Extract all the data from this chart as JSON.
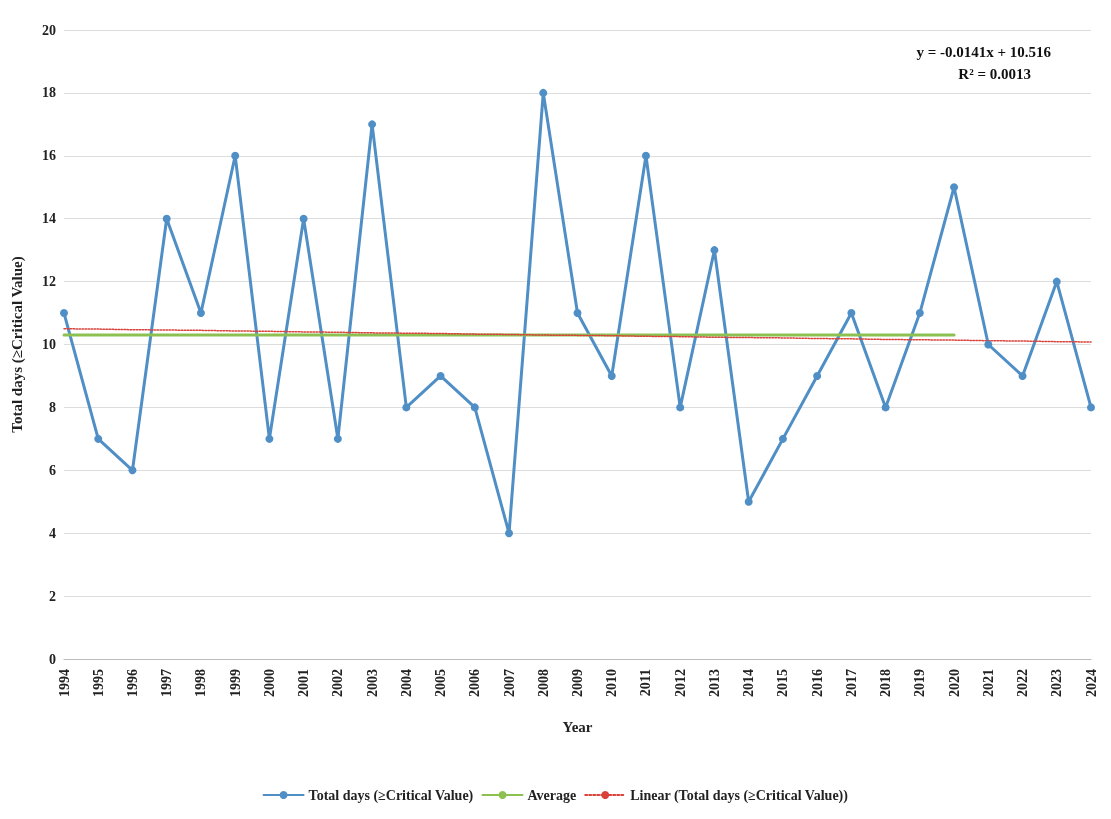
{
  "chart_data": {
    "type": "line",
    "xlabel": "Year",
    "ylabel": "Total days (≥Critical Value)",
    "categories": [
      "1994",
      "1995",
      "1996",
      "1997",
      "1998",
      "1999",
      "2000",
      "2001",
      "2002",
      "2003",
      "2004",
      "2005",
      "2006",
      "2007",
      "2008",
      "2009",
      "2010",
      "2011",
      "2012",
      "2013",
      "2014",
      "2015",
      "2016",
      "2017",
      "2018",
      "2019",
      "2020",
      "2021",
      "2022",
      "2023",
      "2024"
    ],
    "series": [
      {
        "name": "Total days (≥Critical Value)",
        "color": "#4f8fc6",
        "marker": "circle",
        "line_style": "solid",
        "values": [
          11,
          7,
          6,
          14,
          11,
          16,
          7,
          14,
          7,
          17,
          8,
          9,
          8,
          4,
          18,
          11,
          9,
          16,
          8,
          13,
          5,
          7,
          9,
          11,
          8,
          11,
          15,
          10,
          9,
          12,
          8
        ]
      },
      {
        "name": "Average",
        "color": "#8cc152",
        "marker": "none",
        "line_style": "solid",
        "values": [
          10.3,
          10.3,
          10.3,
          10.3,
          10.3,
          10.3,
          10.3,
          10.3,
          10.3,
          10.3,
          10.3,
          10.3,
          10.3,
          10.3,
          10.3,
          10.3,
          10.3,
          10.3,
          10.3,
          10.3,
          10.3,
          10.3,
          10.3,
          10.3,
          10.3,
          10.3,
          10.3,
          null,
          null,
          null,
          null
        ]
      },
      {
        "name": "Linear (Total days (≥Critical Value))",
        "color": "#d9413a",
        "marker": "none",
        "line_style": "dotted",
        "values": [
          10.5,
          10.49,
          10.47,
          10.46,
          10.45,
          10.43,
          10.42,
          10.4,
          10.39,
          10.37,
          10.36,
          10.35,
          10.33,
          10.32,
          10.3,
          10.29,
          10.28,
          10.26,
          10.25,
          10.23,
          10.22,
          10.21,
          10.19,
          10.18,
          10.16,
          10.15,
          10.14,
          10.12,
          10.11,
          10.09,
          10.08
        ]
      }
    ],
    "ylim": [
      0,
      20
    ],
    "yticks": [
      0,
      2,
      4,
      6,
      8,
      10,
      12,
      14,
      16,
      18,
      20
    ],
    "grid": "y",
    "legend": "bottom",
    "annotations": [
      "y = -0.0141x + 10.516",
      "R² = 0.0013"
    ]
  }
}
